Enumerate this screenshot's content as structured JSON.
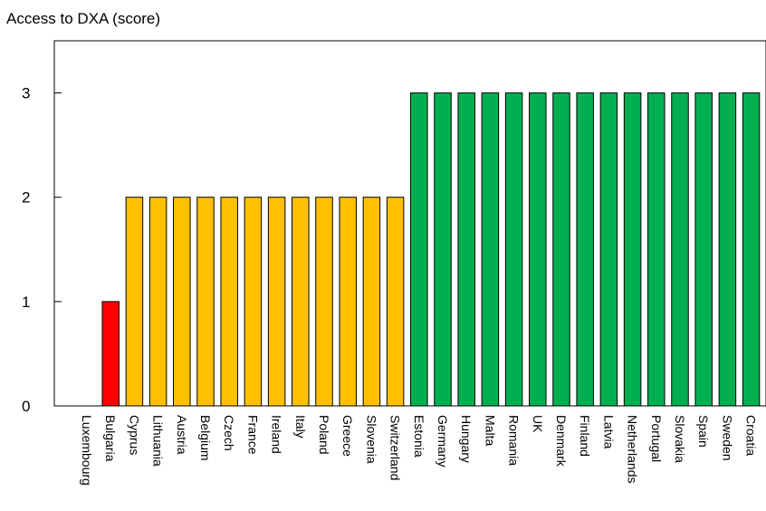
{
  "chart_data": {
    "type": "bar",
    "title": "",
    "ylabel": "Access to DXA (score)",
    "xlabel": "",
    "ylim": [
      0,
      3.5
    ],
    "yticks": [
      0,
      1,
      2,
      3
    ],
    "grid": false,
    "categories": [
      "Luxembourg",
      "Bulgaria",
      "Cyprus",
      "Lithuania",
      "Austria",
      "Belgium",
      "Czech",
      "France",
      "Ireland",
      "Italy",
      "Poland",
      "Greece",
      "Slovenia",
      "Switzerland",
      "Estonia",
      "Germany",
      "Hungary",
      "Malta",
      "Romania",
      "UK",
      "Denmark",
      "Finland",
      "Latvia",
      "Netherlands",
      "Portugal",
      "Slovakia",
      "Spain",
      "Sweden",
      "Croatia"
    ],
    "values": [
      0,
      1,
      2,
      2,
      2,
      2,
      2,
      2,
      2,
      2,
      2,
      2,
      2,
      2,
      3,
      3,
      3,
      3,
      3,
      3,
      3,
      3,
      3,
      3,
      3,
      3,
      3,
      3,
      3
    ],
    "colors": {
      "1": "#ff0000",
      "2": "#ffc000",
      "3": "#00b050"
    }
  }
}
